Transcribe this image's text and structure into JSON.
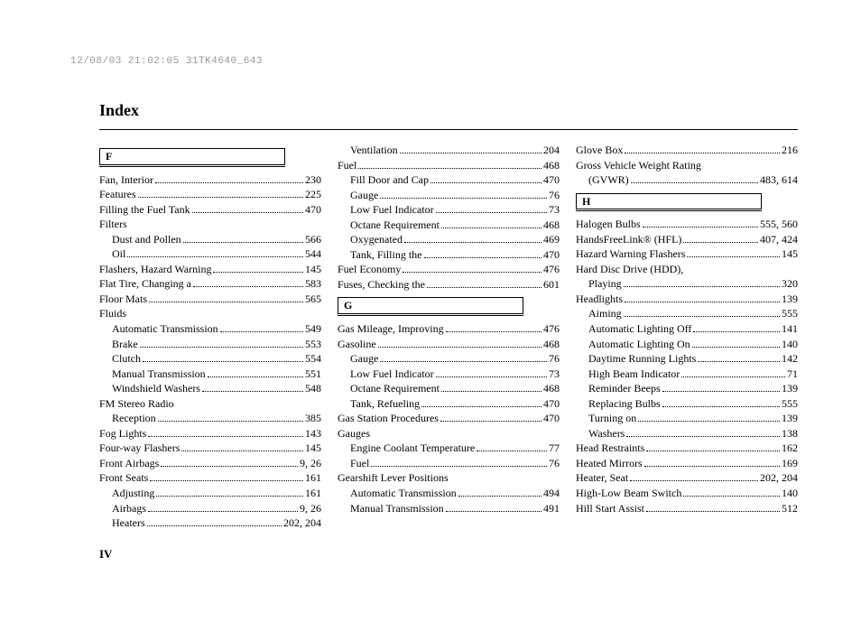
{
  "timestamp": "12/08/03 21:02:05 31TK4640_643",
  "title": "Index",
  "page_number": "IV",
  "columns": [
    {
      "blocks": [
        {
          "type": "letter",
          "letter": "F"
        },
        {
          "type": "entry",
          "label": "Fan, Interior",
          "page": "230"
        },
        {
          "type": "entry",
          "label": "Features",
          "page": "225"
        },
        {
          "type": "entry",
          "label": "Filling the Fuel Tank",
          "page": "470"
        },
        {
          "type": "plain",
          "label": "Filters"
        },
        {
          "type": "entry",
          "label": "Dust and Pollen",
          "page": "566",
          "indent": true
        },
        {
          "type": "entry",
          "label": "Oil",
          "page": "544",
          "indent": true
        },
        {
          "type": "entry",
          "label": "Flashers, Hazard Warning",
          "page": "145"
        },
        {
          "type": "entry",
          "label": "Flat Tire, Changing a",
          "page": "583"
        },
        {
          "type": "entry",
          "label": "Floor Mats",
          "page": "565"
        },
        {
          "type": "plain",
          "label": "Fluids"
        },
        {
          "type": "entry",
          "label": "Automatic Transmission",
          "page": "549",
          "indent": true
        },
        {
          "type": "entry",
          "label": "Brake",
          "page": "553",
          "indent": true
        },
        {
          "type": "entry",
          "label": "Clutch",
          "page": "554",
          "indent": true
        },
        {
          "type": "entry",
          "label": "Manual Transmission",
          "page": "551",
          "indent": true
        },
        {
          "type": "entry",
          "label": "Windshield Washers",
          "page": "548",
          "indent": true
        },
        {
          "type": "plain",
          "label": "FM Stereo Radio"
        },
        {
          "type": "entry",
          "label": "Reception",
          "page": "385",
          "indent": true
        },
        {
          "type": "entry",
          "label": "Fog Lights",
          "page": "143"
        },
        {
          "type": "entry",
          "label": "Four-way Flashers",
          "page": "145"
        },
        {
          "type": "entry",
          "label": "Front Airbags",
          "page": "9, 26"
        },
        {
          "type": "entry",
          "label": "Front Seats",
          "page": "161"
        },
        {
          "type": "entry",
          "label": "Adjusting",
          "page": "161",
          "indent": true
        },
        {
          "type": "entry",
          "label": "Airbags",
          "page": "9, 26",
          "indent": true
        },
        {
          "type": "entry",
          "label": "Heaters",
          "page": "202, 204",
          "indent": true
        }
      ]
    },
    {
      "blocks": [
        {
          "type": "entry",
          "label": "Ventilation",
          "page": "204",
          "indent": true
        },
        {
          "type": "entry",
          "label": "Fuel",
          "page": "468"
        },
        {
          "type": "entry",
          "label": "Fill Door and Cap",
          "page": "470",
          "indent": true
        },
        {
          "type": "entry",
          "label": "Gauge",
          "page": "76",
          "indent": true
        },
        {
          "type": "entry",
          "label": "Low Fuel Indicator",
          "page": "73",
          "indent": true
        },
        {
          "type": "entry",
          "label": "Octane Requirement",
          "page": "468",
          "indent": true
        },
        {
          "type": "entry",
          "label": "Oxygenated",
          "page": "469",
          "indent": true
        },
        {
          "type": "entry",
          "label": "Tank, Filling the",
          "page": "470",
          "indent": true
        },
        {
          "type": "entry",
          "label": "Fuel Economy",
          "page": "476"
        },
        {
          "type": "entry",
          "label": "Fuses, Checking the",
          "page": "601"
        },
        {
          "type": "letter",
          "letter": "G"
        },
        {
          "type": "entry",
          "label": "Gas Mileage, Improving",
          "page": "476"
        },
        {
          "type": "entry",
          "label": "Gasoline",
          "page": "468"
        },
        {
          "type": "entry",
          "label": "Gauge",
          "page": "76",
          "indent": true
        },
        {
          "type": "entry",
          "label": "Low Fuel Indicator",
          "page": "73",
          "indent": true
        },
        {
          "type": "entry",
          "label": "Octane Requirement",
          "page": "468",
          "indent": true
        },
        {
          "type": "entry",
          "label": "Tank, Refueling",
          "page": "470",
          "indent": true
        },
        {
          "type": "entry",
          "label": "Gas Station Procedures",
          "page": "470"
        },
        {
          "type": "plain",
          "label": "Gauges"
        },
        {
          "type": "entry",
          "label": "Engine Coolant Temperature",
          "page": "77",
          "indent": true
        },
        {
          "type": "entry",
          "label": "Fuel",
          "page": "76",
          "indent": true
        },
        {
          "type": "plain",
          "label": "Gearshift Lever Positions"
        },
        {
          "type": "entry",
          "label": "Automatic Transmission",
          "page": "494",
          "indent": true
        },
        {
          "type": "entry",
          "label": "Manual Transmission",
          "page": "491",
          "indent": true
        }
      ]
    },
    {
      "blocks": [
        {
          "type": "entry",
          "label": "Glove Box",
          "page": "216"
        },
        {
          "type": "plain",
          "label": "Gross Vehicle Weight Rating"
        },
        {
          "type": "entry",
          "label": "(GVWR)",
          "page": "483, 614",
          "indent": true
        },
        {
          "type": "letter",
          "letter": "H"
        },
        {
          "type": "entry",
          "label": "Halogen Bulbs",
          "page": "555, 560"
        },
        {
          "type": "entry",
          "label": "HandsFreeLink® (HFL)",
          "page": "407, 424"
        },
        {
          "type": "entry",
          "label": "Hazard Warning Flashers",
          "page": "145"
        },
        {
          "type": "plain",
          "label": "Hard Disc Drive (HDD),"
        },
        {
          "type": "entry",
          "label": "Playing",
          "page": "320",
          "indent": true
        },
        {
          "type": "entry",
          "label": "Headlights",
          "page": "139"
        },
        {
          "type": "entry",
          "label": "Aiming",
          "page": "555",
          "indent": true
        },
        {
          "type": "entry",
          "label": "Automatic Lighting Off",
          "page": "141",
          "indent": true
        },
        {
          "type": "entry",
          "label": "Automatic Lighting On",
          "page": "140",
          "indent": true
        },
        {
          "type": "entry",
          "label": "Daytime Running Lights",
          "page": "142",
          "indent": true
        },
        {
          "type": "entry",
          "label": "High Beam Indicator",
          "page": "71",
          "indent": true
        },
        {
          "type": "entry",
          "label": "Reminder Beeps",
          "page": "139",
          "indent": true
        },
        {
          "type": "entry",
          "label": "Replacing Bulbs",
          "page": "555",
          "indent": true
        },
        {
          "type": "entry",
          "label": "Turning on",
          "page": "139",
          "indent": true
        },
        {
          "type": "entry",
          "label": "Washers",
          "page": "138",
          "indent": true
        },
        {
          "type": "entry",
          "label": "Head Restraints",
          "page": "162"
        },
        {
          "type": "entry",
          "label": "Heated Mirrors",
          "page": "169"
        },
        {
          "type": "entry",
          "label": "Heater, Seat",
          "page": "202, 204"
        },
        {
          "type": "entry",
          "label": "High-Low Beam Switch",
          "page": "140"
        },
        {
          "type": "entry",
          "label": "Hill Start Assist",
          "page": "512"
        }
      ]
    }
  ]
}
